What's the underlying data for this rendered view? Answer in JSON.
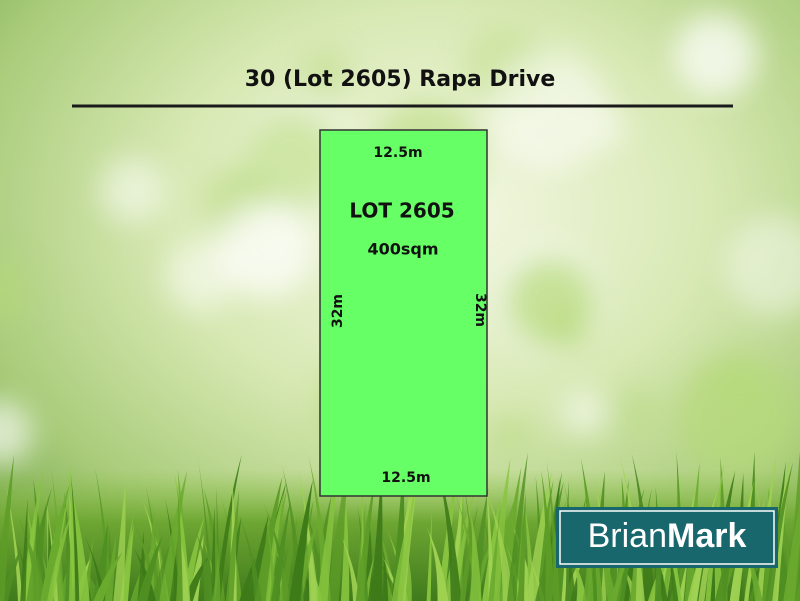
{
  "header": {
    "title": "30 (Lot 2605) Rapa Drive"
  },
  "lot": {
    "label": "LOT 2605",
    "area": "400sqm",
    "top": "12.5m",
    "bottom": "12.5m",
    "left": "32m",
    "right": "32m"
  },
  "logo": {
    "first": "Brian",
    "second": "Mark"
  }
}
